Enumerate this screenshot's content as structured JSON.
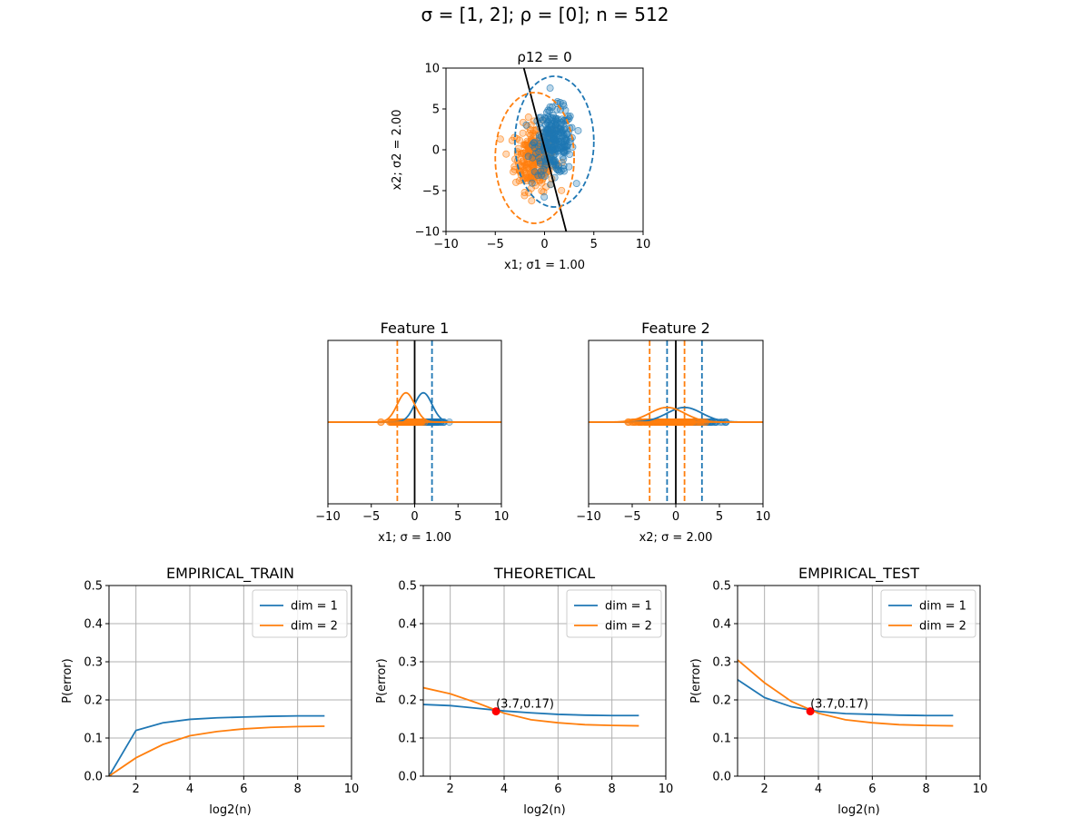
{
  "figure": {
    "suptitle": "σ =  [1, 2]; ρ =  [0]; n =  512"
  },
  "colors": {
    "dim1": "#1f77b4",
    "dim2": "#ff7f0e",
    "grid": "#b0b0b0",
    "marker": "#ff0000",
    "boundary": "#000000"
  },
  "chart_data": [
    {
      "id": "scatter",
      "type": "scatter",
      "title": "ρ12 = 0",
      "xlabel": "x1;  σ1 = 1.00",
      "ylabel": "x2;  σ2 = 2.00",
      "xlim": [
        -10,
        10
      ],
      "ylim": [
        -10,
        10
      ],
      "xticks": [
        -10,
        -5,
        0,
        5,
        10
      ],
      "yticks": [
        -10,
        -5,
        0,
        5,
        10
      ],
      "tick_labels_x": [
        "−10",
        "−5",
        "0",
        "5",
        "10"
      ],
      "tick_labels_y": [
        "−10",
        "−5",
        "0",
        "5",
        "10"
      ],
      "series": [
        {
          "class": 1,
          "mean": [
            1.0,
            1.0
          ],
          "sd": [
            1.0,
            2.0
          ],
          "n": 256,
          "ellipse_radii": [
            4.0,
            8.0
          ]
        },
        {
          "class": 2,
          "mean": [
            -1.0,
            -1.0
          ],
          "sd": [
            1.0,
            2.0
          ],
          "n": 256,
          "ellipse_radii": [
            4.0,
            8.0
          ]
        }
      ],
      "boundary": [
        [
          -2.1,
          10
        ],
        [
          2.2,
          -10
        ]
      ]
    },
    {
      "id": "feature1",
      "type": "line",
      "title": "Feature 1",
      "xlabel": "x1; σ = 1.00",
      "xlim": [
        -10,
        10
      ],
      "xticks": [
        -10,
        -5,
        0,
        5,
        10
      ],
      "tick_labels_x": [
        "−10",
        "−5",
        "0",
        "5",
        "10"
      ],
      "densities": [
        {
          "class": 1,
          "mean": 1.0,
          "sd": 1.0,
          "dashed_at": 2.0,
          "points_range": [
            -1.5,
            4.0
          ]
        },
        {
          "class": 2,
          "mean": -1.0,
          "sd": 1.0,
          "dashed_at": -2.0,
          "points_range": [
            -4.0,
            1.5
          ]
        }
      ],
      "boundary_x": 0
    },
    {
      "id": "feature2",
      "type": "line",
      "title": "Feature 2",
      "xlabel": "x2; σ = 2.00",
      "xlim": [
        -10,
        10
      ],
      "xticks": [
        -10,
        -5,
        0,
        5,
        10
      ],
      "tick_labels_x": [
        "−10",
        "−5",
        "0",
        "5",
        "10"
      ],
      "densities": [
        {
          "class": 1,
          "mean": 1.0,
          "sd": 2.0,
          "dashed_at": [
            -1.0,
            3.0
          ],
          "points_range": [
            -4.5,
            7.2
          ]
        },
        {
          "class": 2,
          "mean": -1.0,
          "sd": 2.0,
          "dashed_at": [
            -3.0,
            1.0
          ],
          "points_range": [
            -6.5,
            4.5
          ]
        }
      ],
      "boundary_x": 0
    },
    {
      "id": "empirical_train",
      "type": "line",
      "title": "EMPIRICAL_TRAIN",
      "xlabel": "log2(n)",
      "ylabel": "P(error)",
      "xlim": [
        1,
        10
      ],
      "ylim": [
        0,
        0.5
      ],
      "xticks": [
        2,
        4,
        6,
        8,
        10
      ],
      "yticks": [
        0.0,
        0.1,
        0.2,
        0.3,
        0.4,
        0.5
      ],
      "tick_labels_x": [
        "2",
        "4",
        "6",
        "8",
        "10"
      ],
      "tick_labels_y": [
        "0.0",
        "0.1",
        "0.2",
        "0.3",
        "0.4",
        "0.5"
      ],
      "grid": true,
      "legend": "top-right",
      "x": [
        1,
        2,
        3,
        4,
        5,
        6,
        7,
        8,
        9
      ],
      "series": [
        {
          "name": "dim = 1",
          "values": [
            0.0,
            0.12,
            0.14,
            0.149,
            0.153,
            0.155,
            0.157,
            0.158,
            0.158
          ]
        },
        {
          "name": "dim = 2",
          "values": [
            0.0,
            0.048,
            0.083,
            0.106,
            0.117,
            0.124,
            0.128,
            0.13,
            0.131
          ]
        }
      ]
    },
    {
      "id": "theoretical",
      "type": "line",
      "title": "THEORETICAL",
      "xlabel": "log2(n)",
      "ylabel": "P(error)",
      "xlim": [
        1,
        10
      ],
      "ylim": [
        0,
        0.5
      ],
      "xticks": [
        2,
        4,
        6,
        8,
        10
      ],
      "yticks": [
        0.0,
        0.1,
        0.2,
        0.3,
        0.4,
        0.5
      ],
      "tick_labels_x": [
        "2",
        "4",
        "6",
        "8",
        "10"
      ],
      "tick_labels_y": [
        "0.0",
        "0.1",
        "0.2",
        "0.3",
        "0.4",
        "0.5"
      ],
      "grid": true,
      "legend": "top-right",
      "x": [
        1,
        2,
        3,
        4,
        5,
        6,
        7,
        8,
        9
      ],
      "series": [
        {
          "name": "dim = 1",
          "values": [
            0.188,
            0.185,
            0.178,
            0.171,
            0.166,
            0.162,
            0.16,
            0.159,
            0.159
          ]
        },
        {
          "name": "dim = 2",
          "values": [
            0.232,
            0.216,
            0.192,
            0.165,
            0.148,
            0.14,
            0.135,
            0.133,
            0.132
          ]
        }
      ],
      "marker": {
        "x": 3.7,
        "y": 0.17,
        "label": "(3.7,0.17)"
      }
    },
    {
      "id": "empirical_test",
      "type": "line",
      "title": "EMPIRICAL_TEST",
      "xlabel": "log2(n)",
      "ylabel": "P(error)",
      "xlim": [
        1,
        10
      ],
      "ylim": [
        0,
        0.5
      ],
      "xticks": [
        2,
        4,
        6,
        8,
        10
      ],
      "yticks": [
        0.0,
        0.1,
        0.2,
        0.3,
        0.4,
        0.5
      ],
      "tick_labels_x": [
        "2",
        "4",
        "6",
        "8",
        "10"
      ],
      "tick_labels_y": [
        "0.0",
        "0.1",
        "0.2",
        "0.3",
        "0.4",
        "0.5"
      ],
      "grid": true,
      "legend": "top-right",
      "x": [
        1,
        2,
        3,
        4,
        5,
        6,
        7,
        8,
        9
      ],
      "series": [
        {
          "name": "dim = 1",
          "values": [
            0.253,
            0.206,
            0.182,
            0.17,
            0.164,
            0.162,
            0.16,
            0.159,
            0.159
          ]
        },
        {
          "name": "dim = 2",
          "values": [
            0.305,
            0.245,
            0.196,
            0.165,
            0.148,
            0.14,
            0.135,
            0.133,
            0.132
          ]
        }
      ],
      "marker": {
        "x": 3.7,
        "y": 0.17,
        "label": "(3.7,0.17)"
      }
    }
  ]
}
